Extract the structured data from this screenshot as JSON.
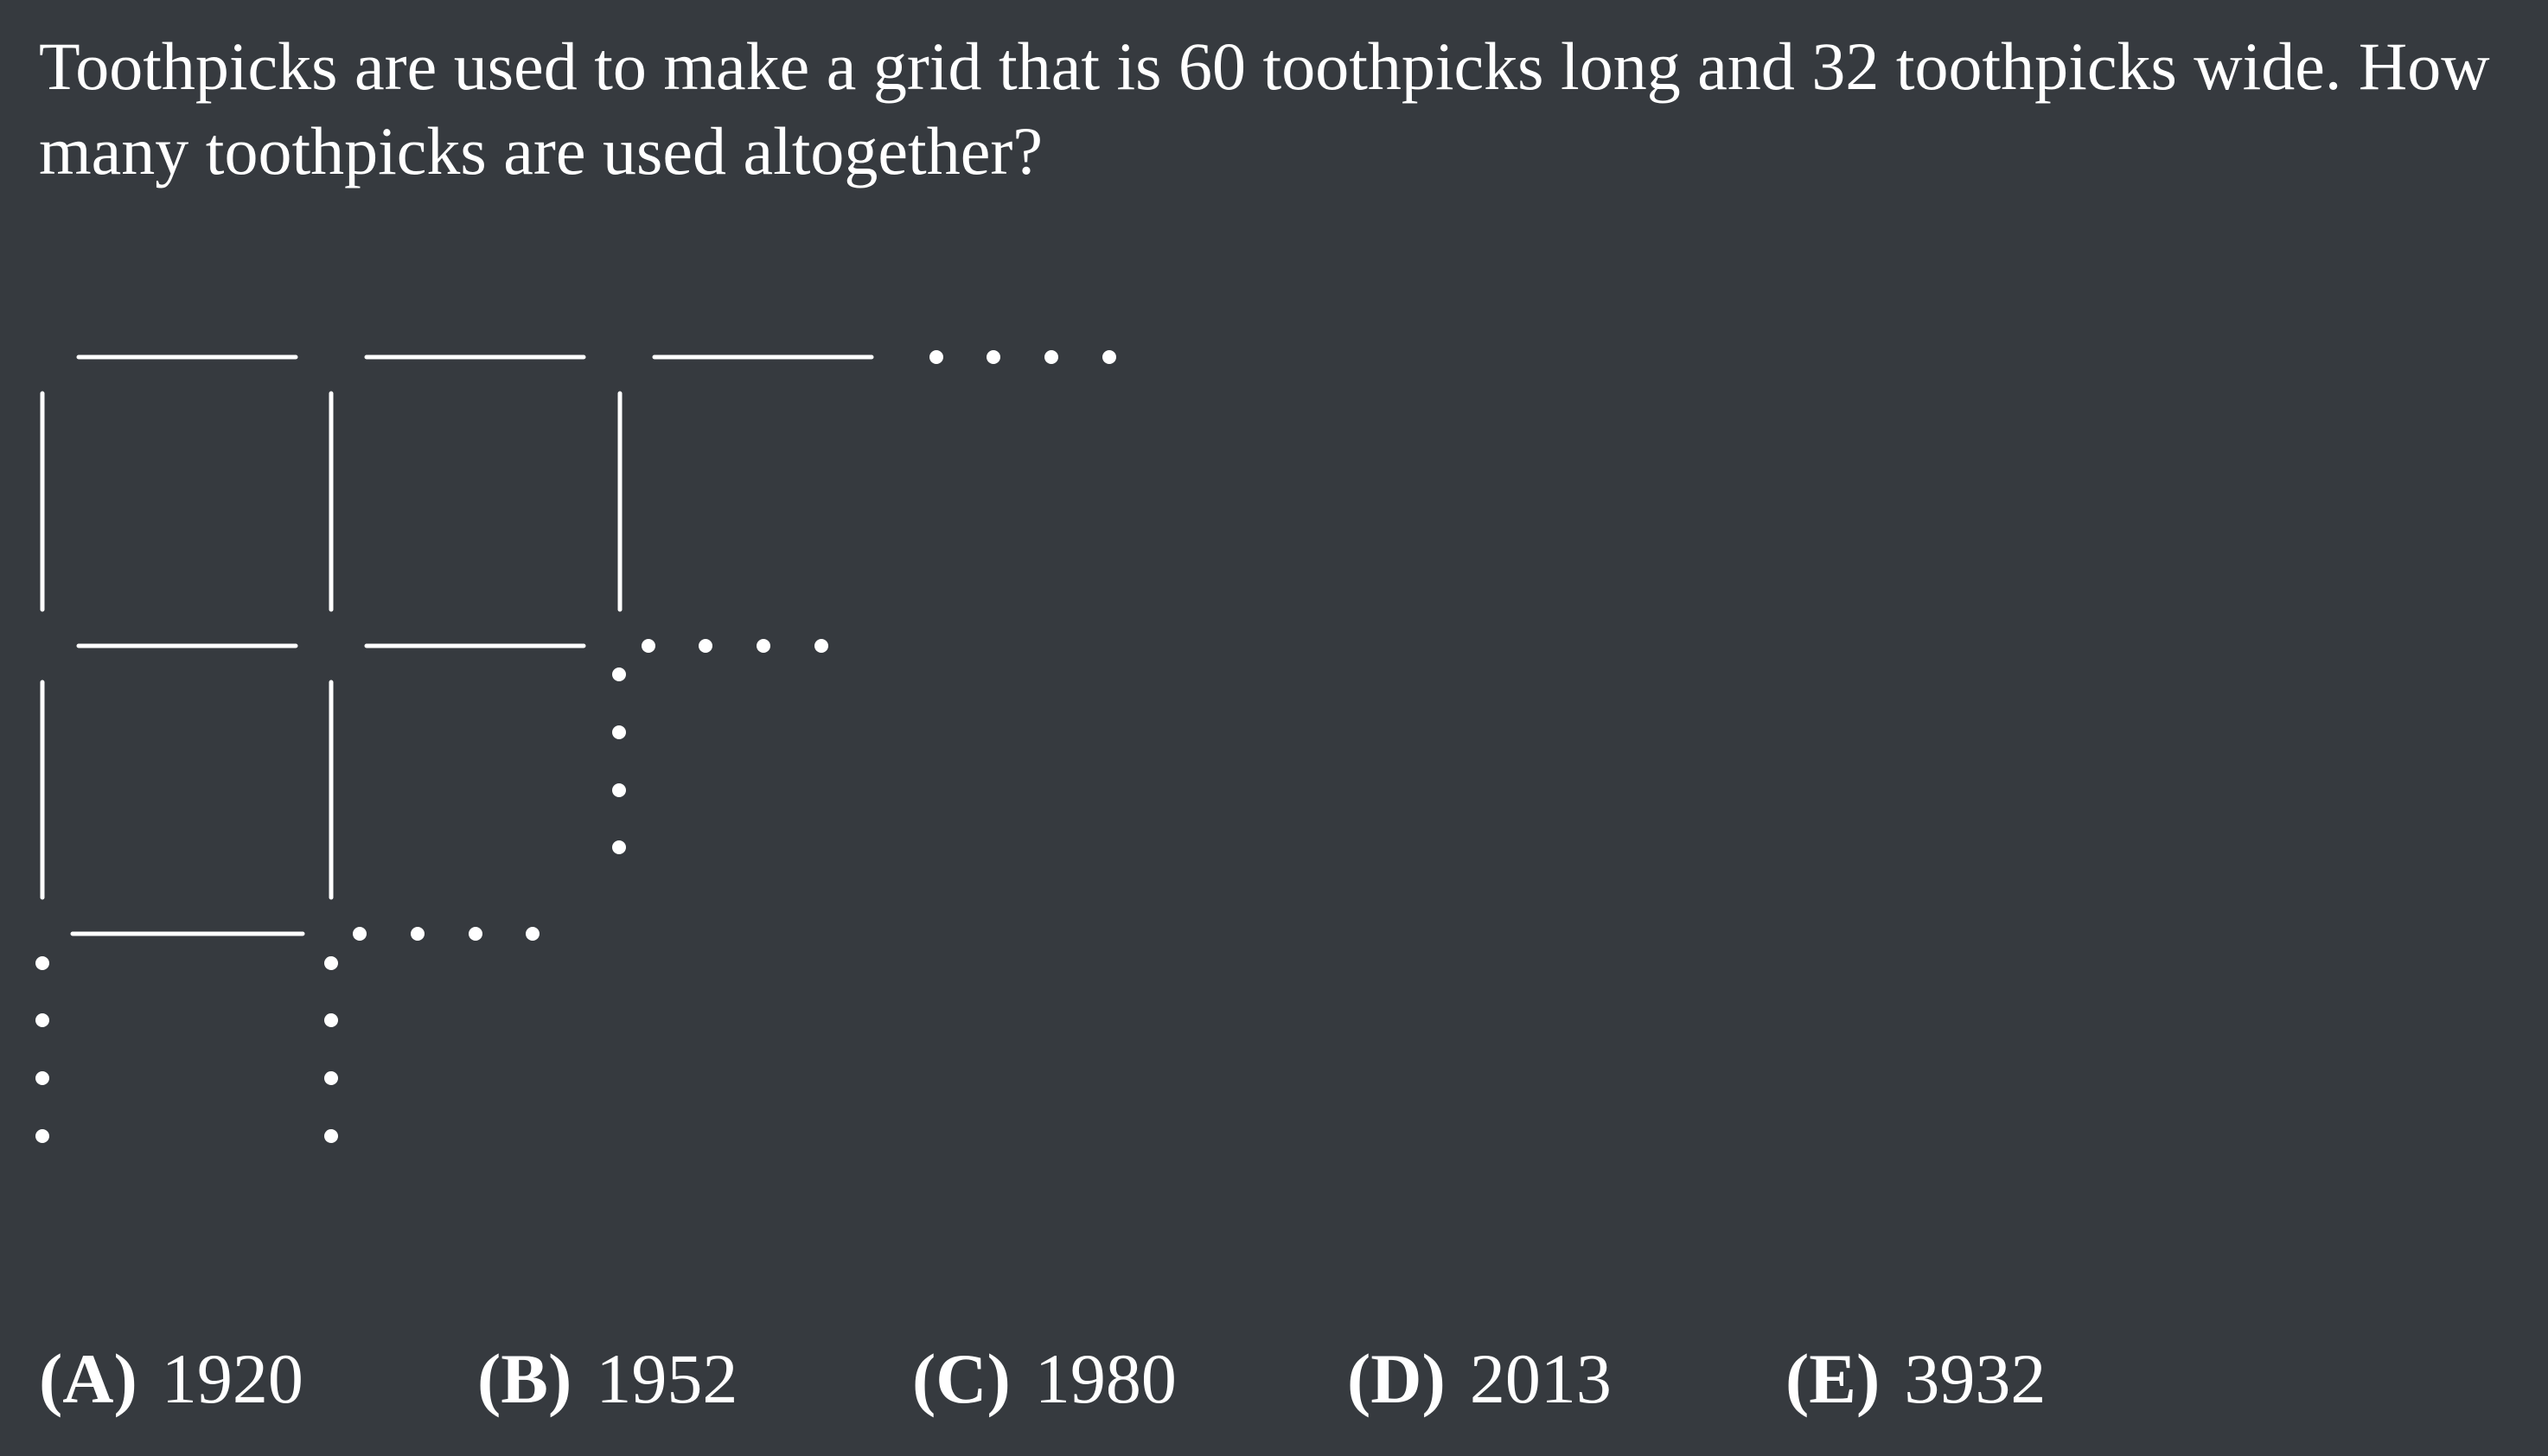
{
  "question": {
    "text": "Toothpicks are used to make a grid that is 60 toothpicks long and 32 toothpicks wide. How many toothpicks are used altogether?"
  },
  "choices": [
    {
      "letter": "(A)",
      "value": "1920"
    },
    {
      "letter": "(B)",
      "value": "1952"
    },
    {
      "letter": "(C)",
      "value": "1980"
    },
    {
      "letter": "(D)",
      "value": "2013"
    },
    {
      "letter": "(E)",
      "value": "3932"
    }
  ],
  "colors": {
    "background": "#363a3f",
    "foreground": "#ffffff"
  }
}
